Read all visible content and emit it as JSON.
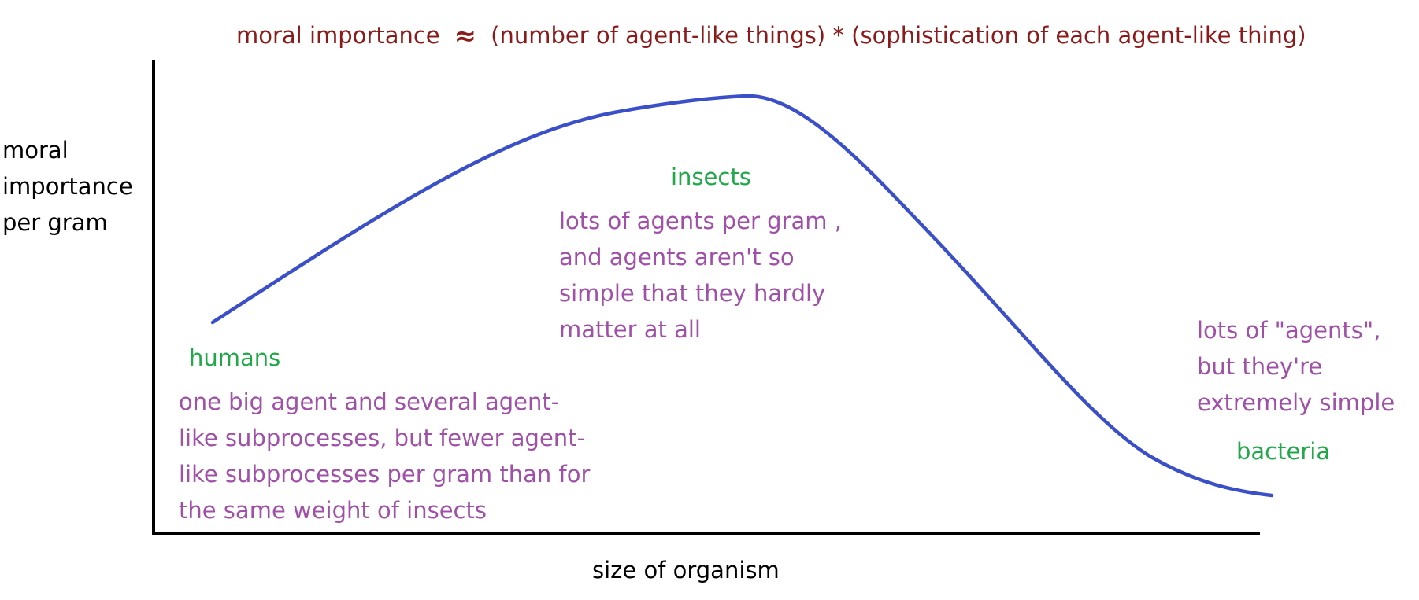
{
  "title": {
    "left": "moral importance",
    "symbol": "≈",
    "right": "(number of agent-like things) * (sophistication of each agent-like thing)"
  },
  "axes": {
    "y_label_lines": [
      "moral",
      "importance",
      "per gram"
    ],
    "x_label": "size of organism"
  },
  "groups": {
    "humans": {
      "label": "humans",
      "description_lines": [
        "one big agent and several agent-",
        "like subprocesses, but fewer agent-",
        "like subprocesses per gram than for",
        "the same weight of insects"
      ]
    },
    "insects": {
      "label": "insects",
      "description_lines": [
        "lots of agents per gram ,",
        "and agents aren't so",
        "simple that they hardly",
        "matter at all"
      ]
    },
    "bacteria": {
      "label": "bacteria",
      "description_lines": [
        "lots of \"agents\",",
        "but they're",
        "extremely simple"
      ]
    }
  },
  "colors": {
    "title": "#8b1a1a",
    "curve": "#3a4fc8",
    "group_label": "#22a84a",
    "description": "#a050a8",
    "axis": "#000000"
  }
}
